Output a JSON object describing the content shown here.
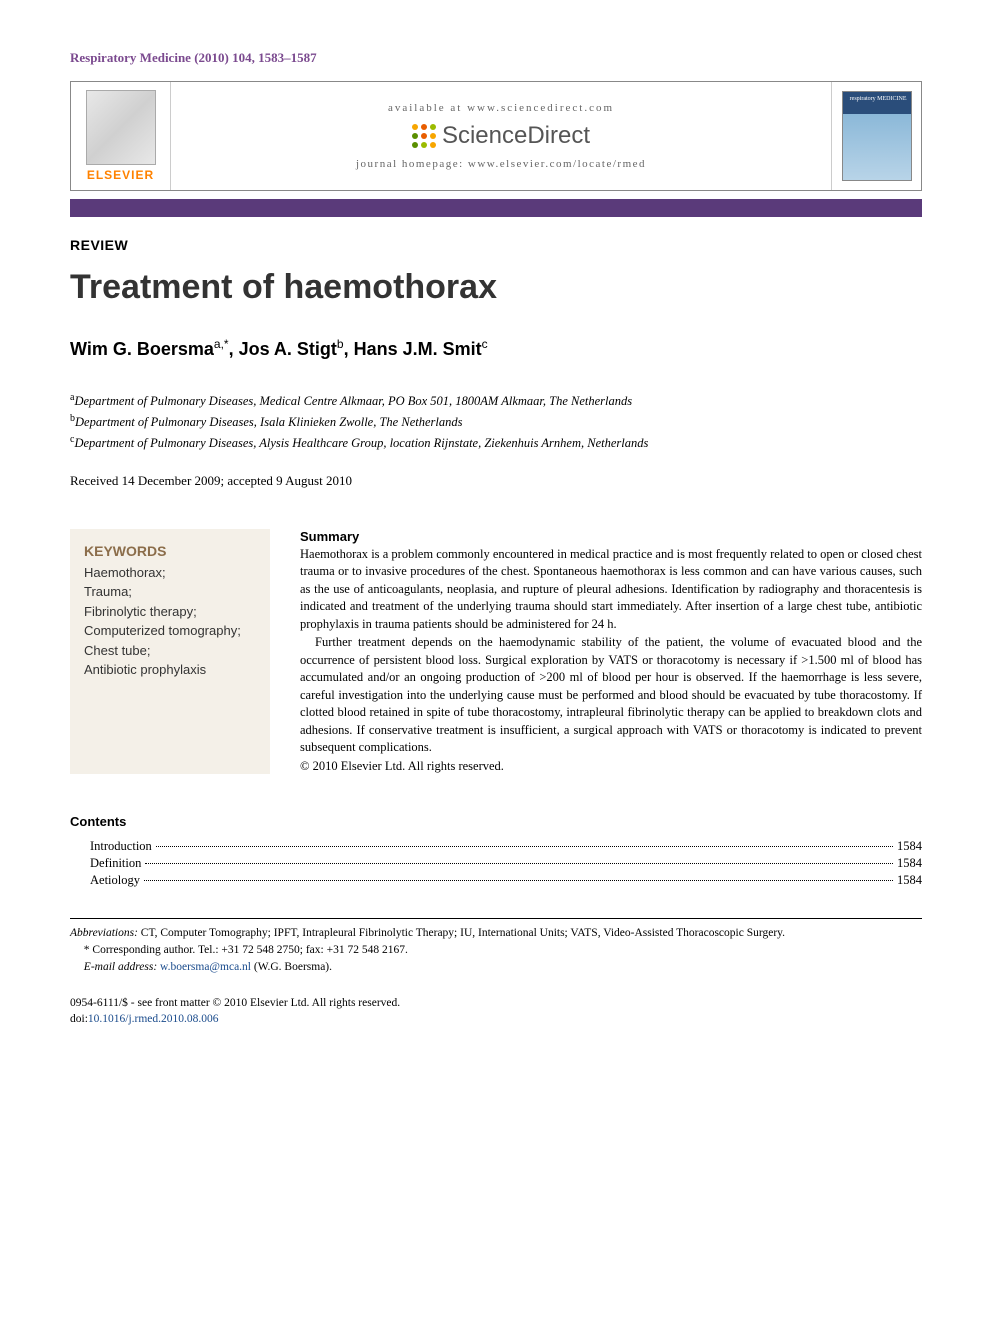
{
  "journal_ref": "Respiratory Medicine (2010) 104, 1583–1587",
  "header": {
    "available": "available at www.sciencedirect.com",
    "sd_brand": "ScienceDirect",
    "homepage": "journal homepage: www.elsevier.com/locate/rmed",
    "elsevier": "ELSEVIER",
    "cover_label": "respiratory MEDICINE"
  },
  "article_type": "REVIEW",
  "title": "Treatment of haemothorax",
  "authors_html": "Wim G. Boersma",
  "author1_name": "Wim G. Boersma",
  "author1_sup": "a,*",
  "author2_name": ", Jos A. Stigt",
  "author2_sup": "b",
  "author3_name": ", Hans J.M. Smit",
  "author3_sup": "c",
  "aff_a_sup": "a",
  "aff_a": "Department of Pulmonary Diseases, Medical Centre Alkmaar, PO Box 501, 1800AM Alkmaar, The Netherlands",
  "aff_b_sup": "b",
  "aff_b": "Department of Pulmonary Diseases, Isala Klinieken Zwolle, The Netherlands",
  "aff_c_sup": "c",
  "aff_c": "Department of Pulmonary Diseases, Alysis Healthcare Group, location Rijnstate, Ziekenhuis Arnhem, Netherlands",
  "dates": "Received 14 December 2009; accepted 9 August 2010",
  "keywords": {
    "title": "KEYWORDS",
    "list": "Haemothorax;\nTrauma;\nFibrinolytic therapy;\nComputerized tomography;\nChest tube;\nAntibiotic prophylaxis"
  },
  "summary": {
    "title": "Summary",
    "p1": "Haemothorax is a problem commonly encountered in medical practice and is most frequently related to open or closed chest trauma or to invasive procedures of the chest. Spontaneous haemothorax is less common and can have various causes, such as the use of anticoagulants, neoplasia, and rupture of pleural adhesions. Identification by radiography and thoracentesis is indicated and treatment of the underlying trauma should start immediately. After insertion of a large chest tube, antibiotic prophylaxis in trauma patients should be administered for 24 h.",
    "p2": "Further treatment depends on the haemodynamic stability of the patient, the volume of evacuated blood and the occurrence of persistent blood loss. Surgical exploration by VATS or thoracotomy is necessary if >1.500 ml of blood has accumulated and/or an ongoing production of >200 ml of blood per hour is observed. If the haemorrhage is less severe, careful investigation into the underlying cause must be performed and blood should be evacuated by tube thoracostomy. If clotted blood retained in spite of tube thoracostomy, intrapleural fibrinolytic therapy can be applied to breakdown clots and adhesions. If conservative treatment is insufficient, a surgical approach with VATS or thoracotomy is indicated to prevent subsequent complications.",
    "copyright": "© 2010 Elsevier Ltd. All rights reserved."
  },
  "contents": {
    "title": "Contents",
    "items": [
      {
        "label": "Introduction",
        "page": "1584"
      },
      {
        "label": "Definition",
        "page": "1584"
      },
      {
        "label": "Aetiology",
        "page": "1584"
      }
    ]
  },
  "footnotes": {
    "abbrev_label": "Abbreviations:",
    "abbrev_text": " CT, Computer Tomography; IPFT, Intrapleural Fibrinolytic Therapy; IU, International Units; VATS, Video-Assisted Thoracoscopic Surgery.",
    "corr": "* Corresponding author. Tel.: +31 72 548 2750; fax: +31 72 548 2167.",
    "email_label": "E-mail address:",
    "email": "w.boersma@mca.nl",
    "email_who": " (W.G. Boersma)."
  },
  "doi": {
    "line1": "0954-6111/$ - see front matter © 2010 Elsevier Ltd. All rights reserved.",
    "doi_label": "doi:",
    "doi_val": "10.1016/j.rmed.2010.08.006"
  },
  "colors": {
    "purple": "#5a3a7a",
    "orange": "#ff8200",
    "link": "#1a4b8c",
    "keywords_bg": "#f4f0e8",
    "keywords_title": "#8b6d4a"
  },
  "sd_dot_colors": [
    "#f7a600",
    "#e85d00",
    "#9bbb00",
    "#5a8f00",
    "#e85d00",
    "#f7a600",
    "#5a8f00",
    "#9bbb00",
    "#f7a600"
  ]
}
